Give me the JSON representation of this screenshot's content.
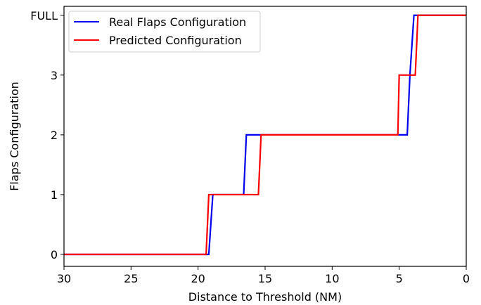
{
  "chart_data": {
    "type": "line",
    "xlabel": "Distance to Threshold (NM)",
    "ylabel": "Flaps Configuration",
    "xlim": [
      30,
      0
    ],
    "ylim": [
      -0.2,
      4.15
    ],
    "x_ticks": [
      30,
      25,
      20,
      15,
      10,
      5,
      0
    ],
    "y_ticks": [
      {
        "value": 0,
        "label": "0"
      },
      {
        "value": 1,
        "label": "1"
      },
      {
        "value": 2,
        "label": "2"
      },
      {
        "value": 3,
        "label": "3"
      },
      {
        "value": 4,
        "label": "FULL"
      }
    ],
    "grid": false,
    "legend_position": "top-left",
    "series": [
      {
        "name": "Real Flaps Configuration",
        "color": "#0000ee",
        "points": [
          [
            30,
            0
          ],
          [
            19.2,
            0
          ],
          [
            18.9,
            1
          ],
          [
            16.6,
            1
          ],
          [
            16.4,
            2
          ],
          [
            4.4,
            2
          ],
          [
            4.2,
            3
          ],
          [
            3.9,
            4
          ],
          [
            0,
            4
          ]
        ]
      },
      {
        "name": "Predicted Configuration",
        "color": "#ff0000",
        "points": [
          [
            30,
            0
          ],
          [
            19.4,
            0
          ],
          [
            19.2,
            1
          ],
          [
            15.5,
            1
          ],
          [
            15.3,
            2
          ],
          [
            5.1,
            2
          ],
          [
            5.0,
            3
          ],
          [
            3.8,
            3
          ],
          [
            3.6,
            4
          ],
          [
            0,
            4
          ]
        ]
      }
    ]
  }
}
